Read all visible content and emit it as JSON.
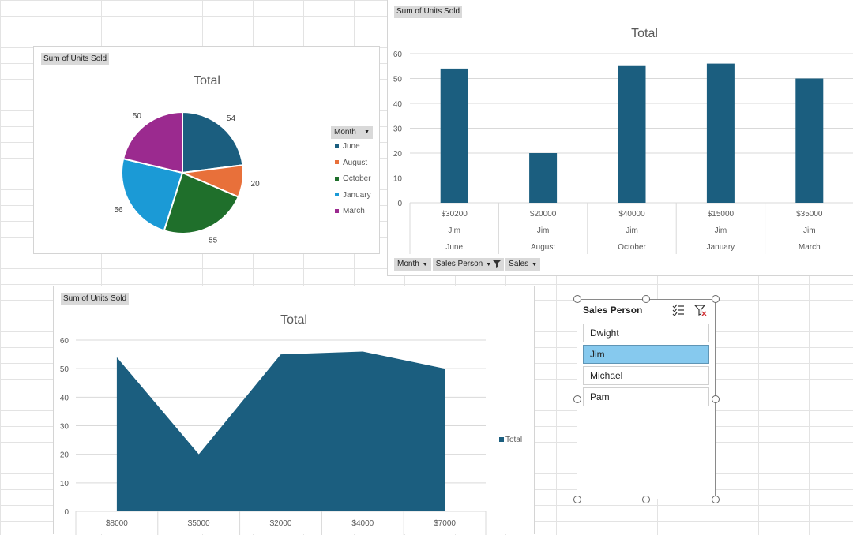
{
  "pie_chart": {
    "field_tag": "Sum of Units Sold",
    "legend_header": "Month",
    "colors": [
      "#1b5e7f",
      "#e8703a",
      "#1f6f2b",
      "#1b9ad6",
      "#9b2a8f"
    ],
    "chart_data": {
      "type": "pie",
      "title": "Total",
      "categories": [
        "June",
        "August",
        "October",
        "January",
        "March"
      ],
      "values": [
        54,
        20,
        55,
        56,
        50
      ],
      "legend_position": "right"
    }
  },
  "bar_chart": {
    "field_tag": "Sum of Units Sold",
    "color": "#1b5e7f",
    "filter_buttons": [
      "Month",
      "Sales Person",
      "Sales"
    ],
    "chart_data": {
      "type": "bar",
      "title": "Total",
      "categories": [
        "June",
        "August",
        "October",
        "January",
        "March"
      ],
      "sales_labels": [
        "$30200",
        "$20000",
        "$40000",
        "$15000",
        "$35000"
      ],
      "person_labels": [
        "Jim",
        "Jim",
        "Jim",
        "Jim",
        "Jim"
      ],
      "values": [
        54,
        20,
        55,
        56,
        50
      ],
      "ylim": [
        0,
        60
      ],
      "yticks": [
        0,
        10,
        20,
        30,
        40,
        50,
        60
      ]
    }
  },
  "area_chart": {
    "field_tag": "Sum of Units Sold",
    "color": "#1b5e7f",
    "chart_data": {
      "type": "area",
      "title": "Total",
      "categories": [
        "$8000",
        "$5000",
        "$2000",
        "$4000",
        "$7000"
      ],
      "values": [
        54,
        20,
        55,
        56,
        50
      ],
      "ylim": [
        0,
        60
      ],
      "yticks": [
        0,
        10,
        20,
        30,
        40,
        50,
        60
      ],
      "legend": "Total",
      "legend_position": "right"
    }
  },
  "slicer": {
    "title": "Sales Person",
    "items": [
      "Dwight",
      "Jim",
      "Michael",
      "Pam"
    ],
    "selected": "Jim"
  }
}
